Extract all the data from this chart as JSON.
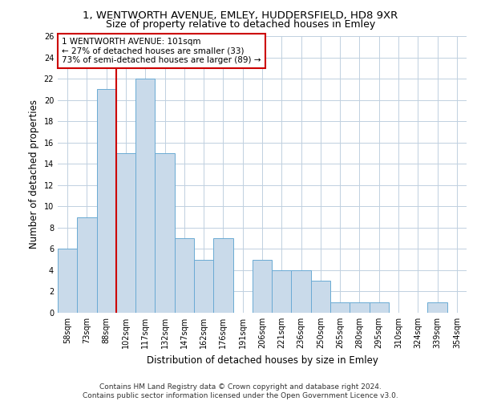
{
  "title": "1, WENTWORTH AVENUE, EMLEY, HUDDERSFIELD, HD8 9XR",
  "subtitle": "Size of property relative to detached houses in Emley",
  "xlabel": "Distribution of detached houses by size in Emley",
  "ylabel": "Number of detached properties",
  "bar_labels": [
    "58sqm",
    "73sqm",
    "88sqm",
    "102sqm",
    "117sqm",
    "132sqm",
    "147sqm",
    "162sqm",
    "176sqm",
    "191sqm",
    "206sqm",
    "221sqm",
    "236sqm",
    "250sqm",
    "265sqm",
    "280sqm",
    "295sqm",
    "310sqm",
    "324sqm",
    "339sqm",
    "354sqm"
  ],
  "bar_values": [
    6,
    9,
    21,
    15,
    22,
    15,
    7,
    5,
    7,
    0,
    5,
    4,
    4,
    3,
    1,
    1,
    1,
    0,
    0,
    1,
    0
  ],
  "bar_color": "#c9daea",
  "bar_edge_color": "#6aaad4",
  "ref_line_index": 2,
  "annotation_text": "1 WENTWORTH AVENUE: 101sqm\n← 27% of detached houses are smaller (33)\n73% of semi-detached houses are larger (89) →",
  "annotation_box_facecolor": "#ffffff",
  "annotation_box_edgecolor": "#cc0000",
  "ylim": [
    0,
    26
  ],
  "yticks": [
    0,
    2,
    4,
    6,
    8,
    10,
    12,
    14,
    16,
    18,
    20,
    22,
    24,
    26
  ],
  "footer_line1": "Contains HM Land Registry data © Crown copyright and database right 2024.",
  "footer_line2": "Contains public sector information licensed under the Open Government Licence v3.0.",
  "bg_color": "#ffffff",
  "grid_color": "#c0d0e0",
  "title_fontsize": 9.5,
  "subtitle_fontsize": 9,
  "axis_label_fontsize": 8.5,
  "tick_fontsize": 7,
  "annotation_fontsize": 7.5,
  "footer_fontsize": 6.5
}
